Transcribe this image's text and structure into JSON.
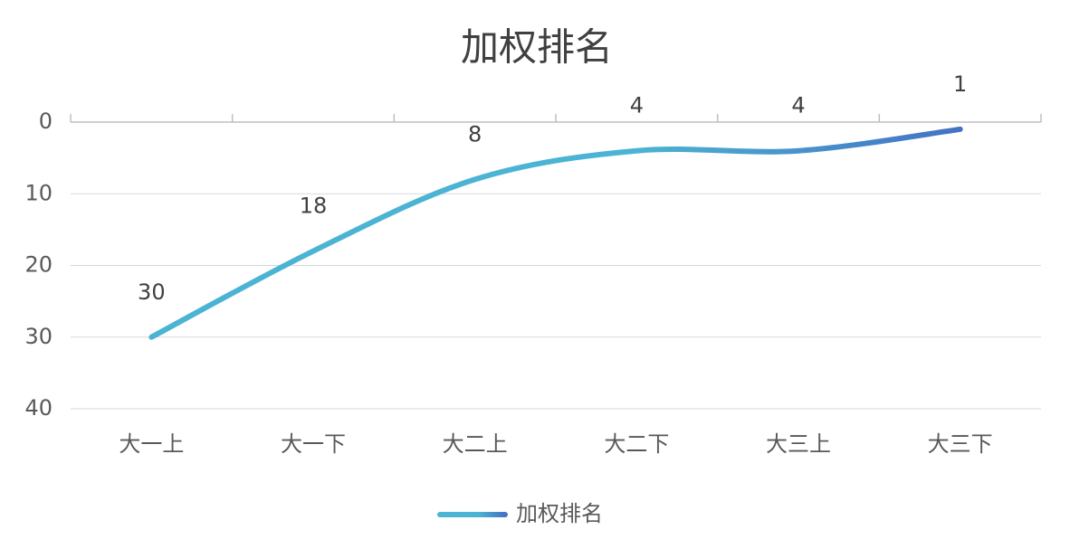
{
  "chart_data": {
    "type": "line",
    "title": "加权排名",
    "categories": [
      "大一上",
      "大一下",
      "大二上",
      "大二下",
      "大三上",
      "大三下"
    ],
    "series": [
      {
        "name": "加权排名",
        "gradient": [
          "#4bb3d3",
          "#4472c4"
        ],
        "values": [
          30,
          18,
          8,
          4,
          4,
          1
        ]
      }
    ],
    "ylim": [
      0,
      40
    ],
    "yticks": [
      0,
      10,
      20,
      30,
      40
    ],
    "y_reversed": true,
    "grid": true,
    "smooth": true,
    "data_labels": true,
    "legend": "bottom"
  }
}
